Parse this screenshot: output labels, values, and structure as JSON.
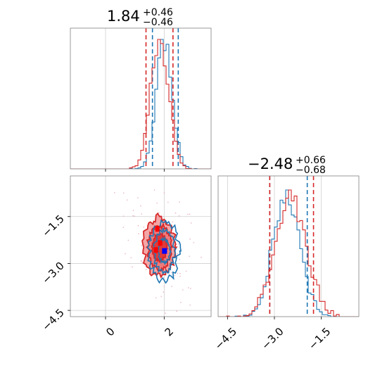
{
  "chart_data": [
    {
      "panel": "top-left",
      "type": "histogram",
      "title": {
        "median": "1.84",
        "plus": "+0.46",
        "minus": "−0.46"
      },
      "xlim": [
        -1.2,
        3.6
      ],
      "grid": true,
      "series": [
        {
          "color": "#1f77b4",
          "quantiles": [
            1.6,
            2.48
          ],
          "mean": 2.0,
          "sd": 0.27
        },
        {
          "color": "#d62728",
          "quantiles": [
            1.38,
            2.3
          ],
          "mean": 1.84,
          "sd": 0.3
        }
      ]
    },
    {
      "panel": "bottom-left",
      "type": "contour",
      "xlim": [
        -1.2,
        3.6
      ],
      "ylim": [
        -4.7,
        -0.2
      ],
      "xticks": [
        0,
        2
      ],
      "xtick_labels": [
        "0",
        "2"
      ],
      "yticks": [
        -1.5,
        -3.0,
        -4.5
      ],
      "ytick_labels": [
        "−1.5",
        "−3.0",
        "−4.5"
      ],
      "grid": true,
      "series": [
        {
          "color": "#1f77b4",
          "center": [
            2.0,
            -2.6
          ],
          "spread": [
            0.35,
            0.65
          ]
        },
        {
          "color": "#d62728",
          "center": [
            1.84,
            -2.48
          ],
          "spread": [
            0.4,
            0.7
          ]
        }
      ]
    },
    {
      "panel": "bottom-right",
      "type": "histogram",
      "title": {
        "median": "−2.48",
        "plus": "+0.66",
        "minus": "−0.68"
      },
      "xlim": [
        -4.8,
        -0.3
      ],
      "xticks": [
        -4.5,
        -3.0,
        -1.5
      ],
      "xtick_labels": [
        "−4.5",
        "−3.0",
        "−1.5"
      ],
      "grid": true,
      "series": [
        {
          "color": "#1f77b4",
          "quantiles": [
            -3.15,
            -1.95
          ],
          "mean": -2.6,
          "sd": 0.42
        },
        {
          "color": "#d62728",
          "quantiles": [
            -3.15,
            -1.75
          ],
          "mean": -2.48,
          "sd": 0.48
        }
      ]
    }
  ]
}
